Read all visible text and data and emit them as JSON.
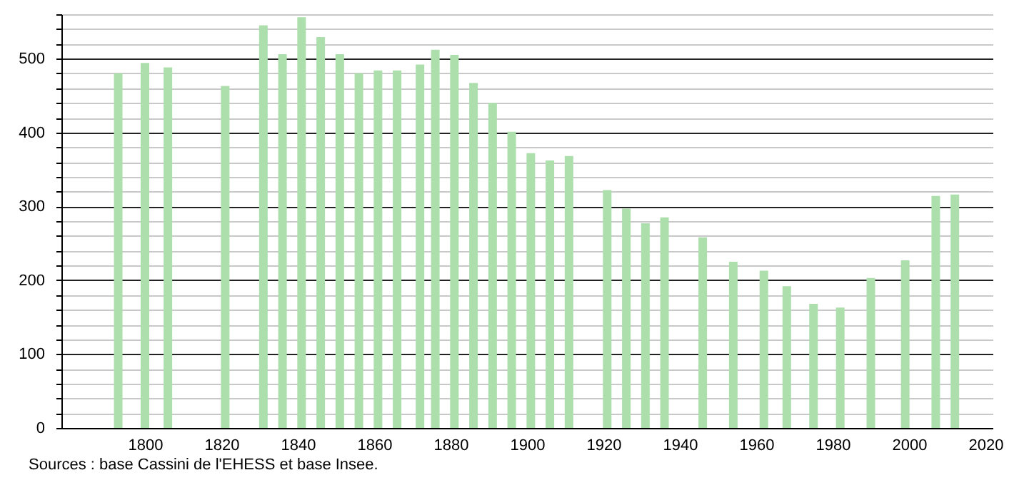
{
  "chart_data": {
    "type": "bar",
    "x": [
      1793,
      1800,
      1806,
      1821,
      1831,
      1836,
      1841,
      1846,
      1851,
      1856,
      1861,
      1866,
      1872,
      1876,
      1881,
      1886,
      1891,
      1896,
      1901,
      1906,
      1911,
      1921,
      1926,
      1931,
      1936,
      1946,
      1954,
      1962,
      1968,
      1975,
      1982,
      1990,
      1999,
      2007,
      2012
    ],
    "values": [
      480,
      494,
      488,
      463,
      545,
      506,
      556,
      529,
      506,
      480,
      484,
      484,
      492,
      512,
      505,
      467,
      440,
      401,
      372,
      362,
      368,
      322,
      297,
      277,
      285,
      258,
      225,
      213,
      192,
      168,
      163,
      203,
      227,
      314,
      316
    ],
    "color": "#addfad",
    "xlim": [
      1780,
      2020
    ],
    "xticks": [
      1800,
      1820,
      1840,
      1860,
      1880,
      1900,
      1920,
      1940,
      1960,
      1980,
      2000,
      2020
    ],
    "ylim": [
      0,
      560
    ],
    "yticks": [
      0,
      {
        "value": 20,
        "label": null
      },
      {
        "value": 40,
        "label": null
      },
      {
        "value": 60,
        "label": null
      },
      {
        "value": 80,
        "label": null
      },
      100,
      {
        "value": 120,
        "label": null
      },
      {
        "value": 140,
        "label": null
      },
      {
        "value": 160,
        "label": null
      },
      {
        "value": 180,
        "label": null
      },
      200,
      {
        "value": 220,
        "label": null
      },
      {
        "value": 240,
        "label": null
      },
      {
        "value": 260,
        "label": null
      },
      {
        "value": 280,
        "label": null
      },
      300,
      {
        "value": 320,
        "label": null
      },
      {
        "value": 340,
        "label": null
      },
      {
        "value": 360,
        "label": null
      },
      {
        "value": 380,
        "label": null
      },
      400,
      {
        "value": 420,
        "label": null
      },
      {
        "value": 440,
        "label": null
      },
      {
        "value": 460,
        "label": null
      },
      {
        "value": 480,
        "label": null
      },
      500,
      {
        "value": 520,
        "label": null
      },
      {
        "value": 540,
        "label": null
      },
      {
        "value": 560,
        "label": null
      }
    ],
    "grid": "y",
    "annotations": [
      "Sources : base Cassini de l'EHESS et base Insee."
    ]
  }
}
